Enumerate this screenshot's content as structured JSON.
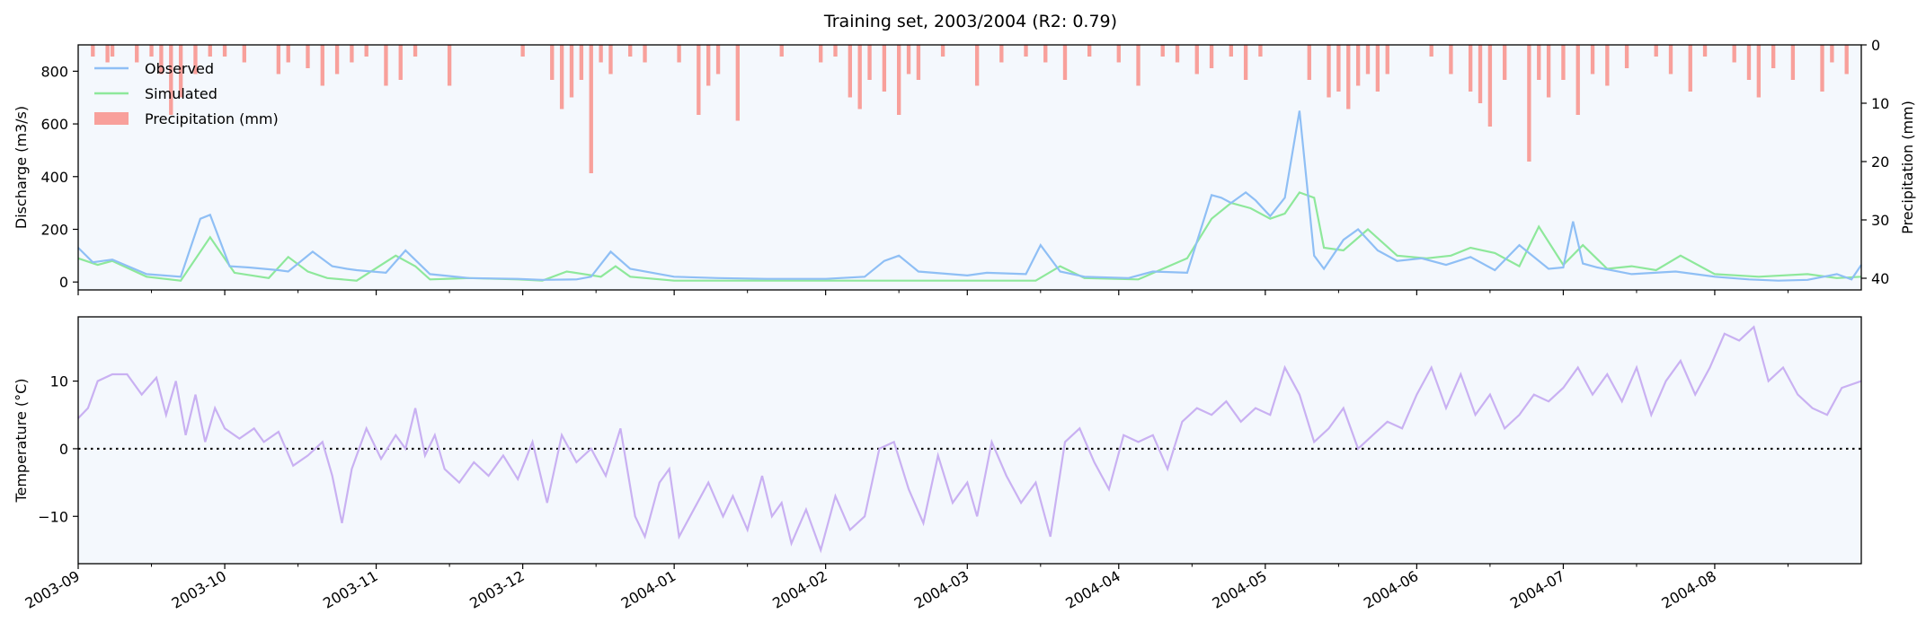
{
  "title": "Training set, 2003/2004 (R2: 0.79)",
  "colors": {
    "observed": "#8fbff5",
    "simulated": "#8ee89b",
    "precipitation": "#f8a09b",
    "temperature": "#c9b1f2",
    "panel_bg": "#f4f8fd"
  },
  "chart_data": [
    {
      "type": "line",
      "panel": "discharge",
      "ylabel": "Discharge (m3/s)",
      "ylim": [
        -30,
        900
      ],
      "yticks": [
        0,
        200,
        400,
        600,
        800
      ],
      "y2label": "Precipitation (mm)",
      "y2lim": [
        42,
        0
      ],
      "y2ticks": [
        0,
        10,
        20,
        30,
        40
      ],
      "x_start": "2003-09-01",
      "x_end": "2004-08-31",
      "legend": {
        "position": "top-left",
        "entries": [
          "Observed",
          "Simulated",
          "Precipitation (mm)"
        ]
      },
      "series": [
        {
          "name": "Observed",
          "x": [
            "2003-09-01",
            "2003-09-04",
            "2003-09-08",
            "2003-09-15",
            "2003-09-22",
            "2003-09-26",
            "2003-09-28",
            "2003-10-02",
            "2003-10-06",
            "2003-10-12",
            "2003-10-14",
            "2003-10-19",
            "2003-10-23",
            "2003-10-26",
            "2003-10-28",
            "2003-11-03",
            "2003-11-07",
            "2003-11-12",
            "2003-11-20",
            "2003-11-30",
            "2003-12-05",
            "2003-12-12",
            "2003-12-15",
            "2003-12-19",
            "2003-12-23",
            "2004-01-01",
            "2004-01-10",
            "2004-01-20",
            "2004-02-01",
            "2004-02-09",
            "2004-02-13",
            "2004-02-16",
            "2004-02-20",
            "2004-03-01",
            "2004-03-05",
            "2004-03-13",
            "2004-03-16",
            "2004-03-20",
            "2004-03-25",
            "2004-04-03",
            "2004-04-08",
            "2004-04-15",
            "2004-04-20",
            "2004-04-22",
            "2004-04-24",
            "2004-04-27",
            "2004-04-29",
            "2004-05-02",
            "2004-05-05",
            "2004-05-08",
            "2004-05-11",
            "2004-05-13",
            "2004-05-17",
            "2004-05-20",
            "2004-05-24",
            "2004-05-28",
            "2004-06-02",
            "2004-06-07",
            "2004-06-12",
            "2004-06-17",
            "2004-06-22",
            "2004-06-28",
            "2004-07-01",
            "2004-07-03",
            "2004-07-05",
            "2004-07-08",
            "2004-07-15",
            "2004-07-24",
            "2004-08-01",
            "2004-08-08",
            "2004-08-14",
            "2004-08-20",
            "2004-08-26",
            "2004-08-29",
            "2004-08-31"
          ],
          "values": [
            130,
            75,
            85,
            30,
            20,
            240,
            255,
            60,
            55,
            45,
            40,
            115,
            60,
            50,
            45,
            35,
            120,
            30,
            15,
            12,
            8,
            10,
            20,
            115,
            50,
            20,
            15,
            12,
            12,
            20,
            80,
            100,
            40,
            25,
            35,
            30,
            140,
            40,
            20,
            15,
            40,
            35,
            330,
            320,
            300,
            340,
            310,
            250,
            320,
            650,
            100,
            50,
            160,
            200,
            120,
            80,
            90,
            65,
            95,
            45,
            140,
            50,
            55,
            230,
            70,
            55,
            30,
            40,
            20,
            10,
            5,
            8,
            30,
            10,
            65
          ]
        },
        {
          "name": "Simulated",
          "x": [
            "2003-09-01",
            "2003-09-05",
            "2003-09-08",
            "2003-09-15",
            "2003-09-22",
            "2003-09-28",
            "2003-10-03",
            "2003-10-10",
            "2003-10-14",
            "2003-10-18",
            "2003-10-22",
            "2003-10-28",
            "2003-11-05",
            "2003-11-09",
            "2003-11-12",
            "2003-11-20",
            "2003-11-30",
            "2003-12-05",
            "2003-12-10",
            "2003-12-17",
            "2003-12-20",
            "2003-12-23",
            "2004-01-01",
            "2004-01-15",
            "2004-02-01",
            "2004-02-15",
            "2004-03-01",
            "2004-03-15",
            "2004-03-20",
            "2004-03-25",
            "2004-04-05",
            "2004-04-10",
            "2004-04-15",
            "2004-04-20",
            "2004-04-24",
            "2004-04-28",
            "2004-05-02",
            "2004-05-05",
            "2004-05-08",
            "2004-05-11",
            "2004-05-13",
            "2004-05-17",
            "2004-05-22",
            "2004-05-28",
            "2004-06-03",
            "2004-06-08",
            "2004-06-12",
            "2004-06-17",
            "2004-06-22",
            "2004-06-26",
            "2004-07-01",
            "2004-07-05",
            "2004-07-10",
            "2004-07-15",
            "2004-07-20",
            "2004-07-25",
            "2004-08-01",
            "2004-08-10",
            "2004-08-20",
            "2004-08-26",
            "2004-08-31"
          ],
          "values": [
            90,
            65,
            80,
            20,
            5,
            170,
            35,
            15,
            95,
            40,
            15,
            5,
            100,
            60,
            10,
            15,
            10,
            5,
            40,
            20,
            60,
            20,
            5,
            5,
            5,
            5,
            5,
            5,
            60,
            15,
            10,
            50,
            90,
            240,
            300,
            280,
            240,
            260,
            340,
            320,
            130,
            120,
            200,
            100,
            90,
            100,
            130,
            110,
            60,
            210,
            65,
            140,
            50,
            60,
            45,
            100,
            30,
            20,
            30,
            15,
            20
          ]
        }
      ],
      "precipitation": {
        "name": "Precipitation (mm)",
        "x": [
          "2003-09-04",
          "2003-09-07",
          "2003-09-08",
          "2003-09-13",
          "2003-09-16",
          "2003-09-18",
          "2003-09-20",
          "2003-09-22",
          "2003-09-25",
          "2003-09-28",
          "2003-10-01",
          "2003-10-05",
          "2003-10-12",
          "2003-10-14",
          "2003-10-18",
          "2003-10-21",
          "2003-10-24",
          "2003-10-27",
          "2003-10-30",
          "2003-11-03",
          "2003-11-06",
          "2003-11-09",
          "2003-11-16",
          "2003-12-01",
          "2003-12-07",
          "2003-12-09",
          "2003-12-11",
          "2003-12-13",
          "2003-12-15",
          "2003-12-17",
          "2003-12-19",
          "2003-12-23",
          "2003-12-26",
          "2004-01-02",
          "2004-01-06",
          "2004-01-08",
          "2004-01-10",
          "2004-01-14",
          "2004-01-23",
          "2004-01-31",
          "2004-02-03",
          "2004-02-06",
          "2004-02-08",
          "2004-02-10",
          "2004-02-13",
          "2004-02-16",
          "2004-02-18",
          "2004-02-20",
          "2004-02-25",
          "2004-03-03",
          "2004-03-08",
          "2004-03-13",
          "2004-03-17",
          "2004-03-21",
          "2004-03-26",
          "2004-04-01",
          "2004-04-05",
          "2004-04-10",
          "2004-04-13",
          "2004-04-17",
          "2004-04-20",
          "2004-04-24",
          "2004-04-27",
          "2004-04-30",
          "2004-05-10",
          "2004-05-14",
          "2004-05-16",
          "2004-05-18",
          "2004-05-20",
          "2004-05-22",
          "2004-05-24",
          "2004-05-26",
          "2004-06-04",
          "2004-06-08",
          "2004-06-12",
          "2004-06-14",
          "2004-06-16",
          "2004-06-19",
          "2004-06-24",
          "2004-06-26",
          "2004-06-28",
          "2004-07-01",
          "2004-07-04",
          "2004-07-07",
          "2004-07-10",
          "2004-07-14",
          "2004-07-20",
          "2004-07-23",
          "2004-07-27",
          "2004-07-30",
          "2004-08-05",
          "2004-08-08",
          "2004-08-10",
          "2004-08-13",
          "2004-08-17",
          "2004-08-23",
          "2004-08-25",
          "2004-08-28"
        ],
        "values": [
          2,
          3,
          2,
          3,
          2,
          5,
          12,
          9,
          5,
          2,
          2,
          3,
          5,
          3,
          4,
          7,
          5,
          3,
          2,
          7,
          6,
          2,
          7,
          2,
          6,
          11,
          9,
          6,
          22,
          3,
          5,
          2,
          3,
          3,
          12,
          7,
          5,
          13,
          2,
          3,
          2,
          9,
          11,
          6,
          8,
          12,
          5,
          6,
          2,
          7,
          3,
          2,
          3,
          6,
          2,
          3,
          7,
          2,
          3,
          5,
          4,
          2,
          6,
          2,
          6,
          9,
          8,
          11,
          7,
          5,
          8,
          5,
          2,
          5,
          8,
          10,
          14,
          6,
          20,
          6,
          9,
          6,
          12,
          5,
          7,
          4,
          2,
          5,
          8,
          2,
          3,
          6,
          9,
          4,
          6,
          8,
          3,
          5
        ]
      }
    },
    {
      "type": "line",
      "panel": "temperature",
      "ylabel": "Temperature (°C)",
      "ylim": [
        -17,
        19.5
      ],
      "yticks": [
        -10,
        0,
        10
      ],
      "reference_line": 0,
      "xticks": [
        "2003-09",
        "2003-10",
        "2003-11",
        "2003-12",
        "2004-01",
        "2004-02",
        "2004-03",
        "2004-04",
        "2004-05",
        "2004-06",
        "2004-07",
        "2004-08"
      ],
      "series": [
        {
          "name": "Temperature",
          "x": [
            "2003-09-01",
            "2003-09-03",
            "2003-09-05",
            "2003-09-08",
            "2003-09-11",
            "2003-09-14",
            "2003-09-17",
            "2003-09-19",
            "2003-09-21",
            "2003-09-23",
            "2003-09-25",
            "2003-09-27",
            "2003-09-29",
            "2003-10-01",
            "2003-10-04",
            "2003-10-07",
            "2003-10-09",
            "2003-10-12",
            "2003-10-15",
            "2003-10-18",
            "2003-10-21",
            "2003-10-23",
            "2003-10-25",
            "2003-10-27",
            "2003-10-30",
            "2003-11-02",
            "2003-11-05",
            "2003-11-07",
            "2003-11-09",
            "2003-11-11",
            "2003-11-13",
            "2003-11-15",
            "2003-11-18",
            "2003-11-21",
            "2003-11-24",
            "2003-11-27",
            "2003-11-30",
            "2003-12-03",
            "2003-12-06",
            "2003-12-09",
            "2003-12-12",
            "2003-12-15",
            "2003-12-18",
            "2003-12-21",
            "2003-12-24",
            "2003-12-26",
            "2003-12-29",
            "2003-12-31",
            "2004-01-02",
            "2004-01-05",
            "2004-01-08",
            "2004-01-11",
            "2004-01-13",
            "2004-01-16",
            "2004-01-19",
            "2004-01-21",
            "2004-01-23",
            "2004-01-25",
            "2004-01-28",
            "2004-01-31",
            "2004-02-03",
            "2004-02-06",
            "2004-02-09",
            "2004-02-12",
            "2004-02-15",
            "2004-02-18",
            "2004-02-21",
            "2004-02-24",
            "2004-02-27",
            "2004-03-01",
            "2004-03-03",
            "2004-03-06",
            "2004-03-09",
            "2004-03-12",
            "2004-03-15",
            "2004-03-18",
            "2004-03-21",
            "2004-03-24",
            "2004-03-27",
            "2004-03-30",
            "2004-04-02",
            "2004-04-05",
            "2004-04-08",
            "2004-04-11",
            "2004-04-14",
            "2004-04-17",
            "2004-04-20",
            "2004-04-23",
            "2004-04-26",
            "2004-04-29",
            "2004-05-02",
            "2004-05-05",
            "2004-05-08",
            "2004-05-11",
            "2004-05-14",
            "2004-05-17",
            "2004-05-20",
            "2004-05-23",
            "2004-05-26",
            "2004-05-29",
            "2004-06-01",
            "2004-06-04",
            "2004-06-07",
            "2004-06-10",
            "2004-06-13",
            "2004-06-16",
            "2004-06-19",
            "2004-06-22",
            "2004-06-25",
            "2004-06-28",
            "2004-07-01",
            "2004-07-04",
            "2004-07-07",
            "2004-07-10",
            "2004-07-13",
            "2004-07-16",
            "2004-07-19",
            "2004-07-22",
            "2004-07-25",
            "2004-07-28",
            "2004-07-31",
            "2004-08-03",
            "2004-08-06",
            "2004-08-09",
            "2004-08-12",
            "2004-08-15",
            "2004-08-18",
            "2004-08-21",
            "2004-08-24",
            "2004-08-27",
            "2004-08-31"
          ],
          "values": [
            4.5,
            6,
            10,
            11,
            11,
            8,
            10.5,
            5,
            10,
            2,
            8,
            1,
            6,
            3,
            1.5,
            3,
            1,
            2.5,
            -2.5,
            -1,
            1,
            -4,
            -11,
            -3,
            3,
            -1.5,
            2,
            0,
            6,
            -1,
            2,
            -3,
            -5,
            -2,
            -4,
            -1,
            -4.5,
            1,
            -8,
            2,
            -2,
            0,
            -4,
            3,
            -10,
            -13,
            -5,
            -3,
            -13,
            -9,
            -5,
            -10,
            -7,
            -12,
            -4,
            -10,
            -8,
            -14,
            -9,
            -15,
            -7,
            -12,
            -10,
            0,
            1,
            -6,
            -11,
            -1,
            -8,
            -5,
            -10,
            1,
            -4,
            -8,
            -5,
            -13,
            1,
            3,
            -2,
            -6,
            2,
            1,
            2,
            -3,
            4,
            6,
            5,
            7,
            4,
            6,
            5,
            12,
            8,
            1,
            3,
            6,
            0,
            2,
            4,
            3,
            8,
            12,
            6,
            11,
            5,
            8,
            3,
            5,
            8,
            7,
            9,
            12,
            8,
            11,
            7,
            12,
            5,
            10,
            13,
            8,
            12,
            17,
            16,
            18,
            10,
            12,
            8,
            6,
            5,
            9,
            10
          ]
        }
      ]
    }
  ]
}
